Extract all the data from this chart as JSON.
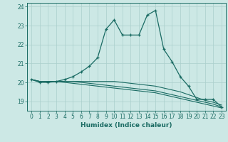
{
  "xlabel": "Humidex (Indice chaleur)",
  "xlim": [
    -0.5,
    23.5
  ],
  "ylim": [
    18.5,
    24.2
  ],
  "yticks": [
    19,
    20,
    21,
    22,
    23,
    24
  ],
  "xticks": [
    0,
    1,
    2,
    3,
    4,
    5,
    6,
    7,
    8,
    9,
    10,
    11,
    12,
    13,
    14,
    15,
    16,
    17,
    18,
    19,
    20,
    21,
    22,
    23
  ],
  "bg_color": "#cce8e5",
  "grid_color": "#aacfcc",
  "line_color": "#1a6b63",
  "main_x": [
    0,
    1,
    2,
    3,
    4,
    5,
    6,
    7,
    8,
    9,
    10,
    11,
    12,
    13,
    14,
    15,
    16,
    17,
    18,
    19,
    20,
    21,
    22,
    23
  ],
  "main_y": [
    20.15,
    20.0,
    20.0,
    20.05,
    20.15,
    20.3,
    20.55,
    20.85,
    21.3,
    22.8,
    23.3,
    22.5,
    22.5,
    22.5,
    23.55,
    23.8,
    21.75,
    21.1,
    20.3,
    19.8,
    19.1,
    19.1,
    19.1,
    18.7
  ],
  "flat_lines": [
    [
      20.15,
      20.05,
      20.05,
      20.05,
      20.05,
      20.05,
      20.05,
      20.05,
      20.05,
      20.05,
      20.05,
      20.0,
      19.95,
      19.9,
      19.85,
      19.8,
      19.7,
      19.6,
      19.5,
      19.35,
      19.2,
      19.05,
      18.95,
      18.8
    ],
    [
      20.15,
      20.05,
      20.05,
      20.05,
      20.05,
      20.05,
      20.0,
      19.95,
      19.9,
      19.85,
      19.8,
      19.75,
      19.7,
      19.65,
      19.6,
      19.55,
      19.45,
      19.35,
      19.25,
      19.15,
      19.05,
      18.95,
      18.85,
      18.7
    ],
    [
      20.15,
      20.05,
      20.05,
      20.05,
      20.0,
      19.95,
      19.9,
      19.85,
      19.8,
      19.75,
      19.7,
      19.65,
      19.6,
      19.55,
      19.5,
      19.45,
      19.35,
      19.25,
      19.15,
      19.05,
      18.95,
      18.85,
      18.75,
      18.65
    ]
  ]
}
